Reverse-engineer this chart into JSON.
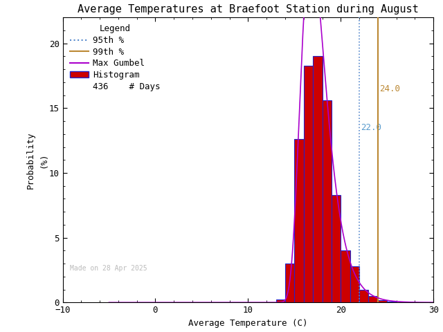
{
  "title": "Average Temperatures at Braefoot Station during August",
  "xlabel": "Average Temperature (C)",
  "ylabel": "Probability\n(%)",
  "xlim": [
    -10,
    30
  ],
  "ylim": [
    0,
    22
  ],
  "xticks": [
    -10,
    0,
    10,
    20,
    30
  ],
  "yticks": [
    0,
    5,
    10,
    15,
    20
  ],
  "bar_edges": [
    13,
    14,
    15,
    16,
    17,
    18,
    19,
    20,
    21,
    22,
    23,
    24,
    25,
    26
  ],
  "bar_heights": [
    0.23,
    3.0,
    12.6,
    18.3,
    19.0,
    15.6,
    8.3,
    4.0,
    2.8,
    1.0,
    0.5,
    0.2,
    0.05
  ],
  "bar_color": "#cc0000",
  "bar_edge_color": "#2222cc",
  "gumbel_color": "#aa00cc",
  "pct95_color": "#5588cc",
  "pct99_color": "#bb8833",
  "pct95_x": 22.0,
  "pct99_x": 24.0,
  "gumbel_mu": 16.8,
  "gumbel_beta": 1.35,
  "n_days": 436,
  "watermark": "Made on 28 Apr 2025",
  "background_color": "#ffffff",
  "title_color": "#000000",
  "title_fontsize": 11,
  "axis_fontsize": 9,
  "tick_fontsize": 9,
  "legend_fontsize": 9,
  "watermark_color": "#bbbbbb",
  "pct95_label_color": "#5599cc",
  "pct99_label_color": "#bb8833"
}
